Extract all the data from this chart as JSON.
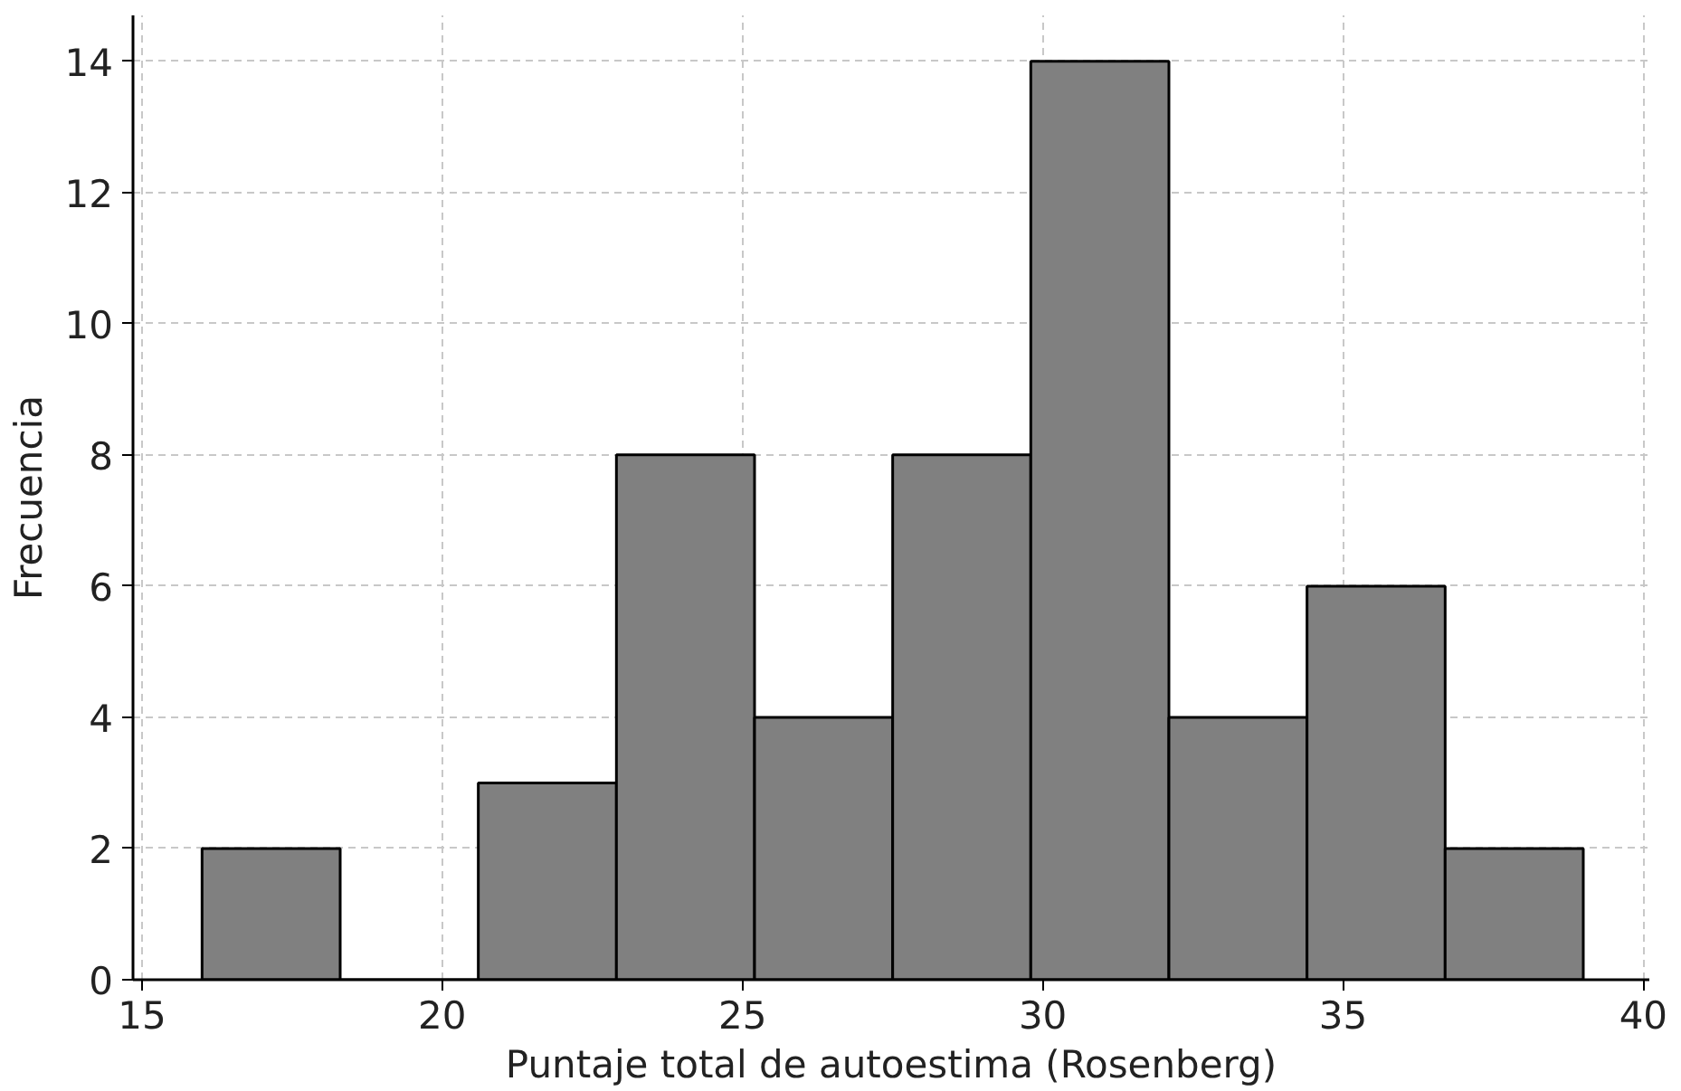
{
  "chart_data": {
    "type": "histogram",
    "xlabel": "Puntaje total de autoestima (Rosenberg)",
    "ylabel": "Frecuencia",
    "bins": [
      16,
      18.3,
      20.6,
      22.9,
      25.2,
      27.5,
      29.8,
      32.1,
      34.4,
      36.7,
      39
    ],
    "values": [
      2,
      0,
      3,
      8,
      4,
      8,
      14,
      4,
      6,
      2
    ],
    "color": "#808080",
    "xlim": [
      14.85,
      40.1
    ],
    "ylim": [
      0,
      14.7
    ],
    "xticks": [
      15,
      20,
      25,
      30,
      35,
      40
    ],
    "yticks": [
      0,
      2,
      4,
      6,
      8,
      10,
      12,
      14
    ],
    "grid": true
  }
}
